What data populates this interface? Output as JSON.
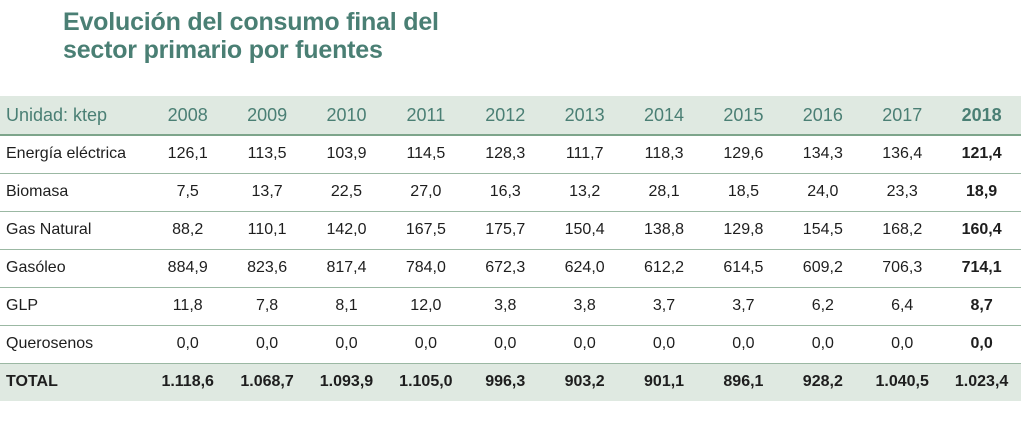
{
  "title_lines": [
    "Evolución del consumo final del",
    "sector primario por fuentes"
  ],
  "chart_data": {
    "type": "table",
    "title": "Evolución del consumo final del sector primario por fuentes",
    "unit_label": "Unidad: ktep",
    "columns": [
      "2008",
      "2009",
      "2010",
      "2011",
      "2012",
      "2013",
      "2014",
      "2015",
      "2016",
      "2017",
      "2018"
    ],
    "rows": [
      {
        "label": "Energía eléctrica",
        "values": [
          "126,1",
          "113,5",
          "103,9",
          "114,5",
          "128,3",
          "111,7",
          "118,3",
          "129,6",
          "134,3",
          "136,4",
          "121,4"
        ]
      },
      {
        "label": "Biomasa",
        "values": [
          "7,5",
          "13,7",
          "22,5",
          "27,0",
          "16,3",
          "13,2",
          "28,1",
          "18,5",
          "24,0",
          "23,3",
          "18,9"
        ]
      },
      {
        "label": "Gas Natural",
        "values": [
          "88,2",
          "110,1",
          "142,0",
          "167,5",
          "175,7",
          "150,4",
          "138,8",
          "129,8",
          "154,5",
          "168,2",
          "160,4"
        ]
      },
      {
        "label": "Gasóleo",
        "values": [
          "884,9",
          "823,6",
          "817,4",
          "784,0",
          "672,3",
          "624,0",
          "612,2",
          "614,5",
          "609,2",
          "706,3",
          "714,1"
        ]
      },
      {
        "label": "GLP",
        "values": [
          "11,8",
          "7,8",
          "8,1",
          "12,0",
          "3,8",
          "3,8",
          "3,7",
          "3,7",
          "6,2",
          "6,4",
          "8,7"
        ]
      },
      {
        "label": "Querosenos",
        "values": [
          "0,0",
          "0,0",
          "0,0",
          "0,0",
          "0,0",
          "0,0",
          "0,0",
          "0,0",
          "0,0",
          "0,0",
          "0,0"
        ]
      }
    ],
    "total": {
      "label": "TOTAL",
      "values": [
        "1.118,6",
        "1.068,7",
        "1.093,9",
        "1.105,0",
        "996,3",
        "903,2",
        "901,1",
        "896,1",
        "928,2",
        "1.040,5",
        "1.023,4"
      ]
    }
  }
}
